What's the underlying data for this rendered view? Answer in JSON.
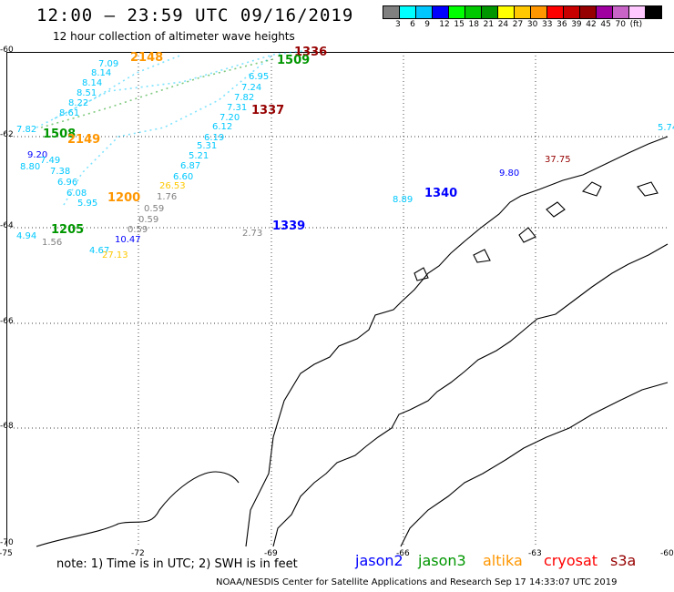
{
  "header": {
    "title": "12:00 — 23:59 UTC 09/16/2019",
    "subtitle": "12 hour collection of altimeter wave heights"
  },
  "scale": {
    "colors": [
      "#808080",
      "#00ffff",
      "#00c8ff",
      "#0000ff",
      "#00ff00",
      "#00c800",
      "#009600",
      "#ffff00",
      "#ffc800",
      "#ff9600",
      "#ff0000",
      "#c80000",
      "#960000",
      "#a000a0",
      "#c864c8",
      "#ffc8ff",
      "#000000"
    ],
    "labels": [
      "3",
      "6",
      "9",
      "12",
      "15",
      "18",
      "21",
      "24",
      "27",
      "30",
      "33",
      "36",
      "39",
      "42",
      "45",
      "70",
      "(ft)"
    ]
  },
  "axes": {
    "lat": [
      "-60",
      "-62",
      "-64",
      "-66",
      "-68",
      "-70"
    ],
    "lon": [
      "-75",
      "-72",
      "-69",
      "-66",
      "-63",
      "-60"
    ]
  },
  "swh": [
    {
      "text": "7.09",
      "color": "#00c8ff"
    },
    {
      "text": "8.14",
      "color": "#00c8ff"
    },
    {
      "text": "8.14",
      "color": "#00c8ff"
    },
    {
      "text": "8.51",
      "color": "#00c8ff"
    },
    {
      "text": "8.22",
      "color": "#00c8ff"
    },
    {
      "text": "8.61",
      "color": "#00c8ff"
    },
    {
      "text": "7.82",
      "color": "#00c8ff"
    },
    {
      "text": "9.20",
      "color": "#0000ff"
    },
    {
      "text": "8.80",
      "color": "#00c8ff"
    },
    {
      "text": "7.49",
      "color": "#00c8ff"
    },
    {
      "text": "7.38",
      "color": "#00c8ff"
    },
    {
      "text": "6.96",
      "color": "#00c8ff"
    },
    {
      "text": "6.08",
      "color": "#00c8ff"
    },
    {
      "text": "5.95",
      "color": "#00c8ff"
    },
    {
      "text": "6.95",
      "color": "#00c8ff"
    },
    {
      "text": "7.24",
      "color": "#00c8ff"
    },
    {
      "text": "7.82",
      "color": "#00c8ff"
    },
    {
      "text": "7.31",
      "color": "#00c8ff"
    },
    {
      "text": "7.20",
      "color": "#00c8ff"
    },
    {
      "text": "6.12",
      "color": "#00c8ff"
    },
    {
      "text": "6.19",
      "color": "#00c8ff"
    },
    {
      "text": "5.31",
      "color": "#00c8ff"
    },
    {
      "text": "5.21",
      "color": "#00c8ff"
    },
    {
      "text": "6.87",
      "color": "#00c8ff"
    },
    {
      "text": "6.60",
      "color": "#00c8ff"
    },
    {
      "text": "26.53",
      "color": "#ffc800"
    },
    {
      "text": "1.76",
      "color": "#808080"
    },
    {
      "text": "0.59",
      "color": "#808080"
    },
    {
      "text": "0.59",
      "color": "#808080"
    },
    {
      "text": "0.59",
      "color": "#808080"
    },
    {
      "text": "10.47",
      "color": "#0000ff"
    },
    {
      "text": "1.56",
      "color": "#808080"
    },
    {
      "text": "4.94",
      "color": "#00c8ff"
    },
    {
      "text": "4.67",
      "color": "#00c8ff"
    },
    {
      "text": "27.13",
      "color": "#ffc800"
    },
    {
      "text": "2.73",
      "color": "#808080"
    },
    {
      "text": "8.89",
      "color": "#00c8ff"
    },
    {
      "text": "9.80",
      "color": "#0000ff"
    },
    {
      "text": "37.75",
      "color": "#960000"
    },
    {
      "text": "5.74",
      "color": "#00c8ff"
    }
  ],
  "pass_times": [
    {
      "text": "2148",
      "color": "#ff9600"
    },
    {
      "text": "1336",
      "color": "#960000"
    },
    {
      "text": "1509",
      "color": "#009600"
    },
    {
      "text": "1337",
      "color": "#960000"
    },
    {
      "text": "1508",
      "color": "#009600"
    },
    {
      "text": "2149",
      "color": "#ff9600"
    },
    {
      "text": "1200",
      "color": "#ff9600"
    },
    {
      "text": "1205",
      "color": "#009600"
    },
    {
      "text": "1339",
      "color": "#0000ff"
    },
    {
      "text": "1340",
      "color": "#0000ff"
    }
  ],
  "footer": {
    "note": "note:  1) Time is in UTC;  2) SWH is in feet",
    "legend": [
      {
        "text": "jason2",
        "color": "#0000ff"
      },
      {
        "text": "jason3",
        "color": "#009600"
      },
      {
        "text": "altika",
        "color": "#ff9600"
      },
      {
        "text": "cryosat",
        "color": "#ff0000"
      },
      {
        "text": "s3a",
        "color": "#960000"
      }
    ],
    "credit": "NOAA/NESDIS Center for Satellite Applications and Research   Sep 17 14:33:07 UTC 2019"
  }
}
